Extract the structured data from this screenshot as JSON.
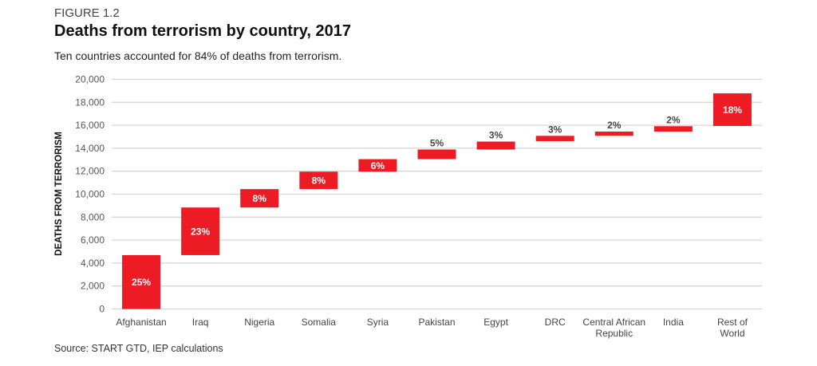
{
  "figure_label": "FIGURE 1.2",
  "title": "Deaths from terrorism by country, 2017",
  "subtitle": "Ten countries accounted for 84% of deaths from terrorism.",
  "source": "Source: START GTD, IEP calculations",
  "chart_data": {
    "type": "bar",
    "subtype": "waterfall",
    "ylabel": "DEATHS FROM TERRORISM",
    "ylim": [
      0,
      20000
    ],
    "yticks": [
      0,
      2000,
      4000,
      6000,
      8000,
      10000,
      12000,
      14000,
      16000,
      18000,
      20000
    ],
    "ytick_labels": [
      "0",
      "2,000",
      "4,000",
      "6,000",
      "8,000",
      "10,000",
      "12,000",
      "14,000",
      "16,000",
      "18,000",
      "20,000"
    ],
    "grid": true,
    "bar_color": "#ED1C24",
    "categories": [
      [
        "Afghanistan"
      ],
      [
        "Iraq"
      ],
      [
        "Nigeria"
      ],
      [
        "Somalia"
      ],
      [
        "Syria"
      ],
      [
        "Pakistan"
      ],
      [
        "Egypt"
      ],
      [
        "DRC"
      ],
      [
        "Central African",
        "Republic"
      ],
      [
        "India"
      ],
      [
        "Rest of",
        "World"
      ]
    ],
    "bars": [
      {
        "start": 0,
        "end": 4690,
        "label": "25%"
      },
      {
        "start": 4690,
        "end": 8840,
        "label": "23%"
      },
      {
        "start": 8840,
        "end": 10440,
        "label": "8%"
      },
      {
        "start": 10440,
        "end": 11960,
        "label": "8%"
      },
      {
        "start": 11960,
        "end": 13050,
        "label": "6%"
      },
      {
        "start": 13050,
        "end": 13890,
        "label": "5%"
      },
      {
        "start": 13890,
        "end": 14580,
        "label": "3%"
      },
      {
        "start": 14620,
        "end": 15080,
        "label": "3%"
      },
      {
        "start": 15080,
        "end": 15450,
        "label": "2%"
      },
      {
        "start": 15450,
        "end": 15920,
        "label": "2%"
      },
      {
        "start": 15940,
        "end": 18780,
        "label": "18%"
      }
    ]
  }
}
